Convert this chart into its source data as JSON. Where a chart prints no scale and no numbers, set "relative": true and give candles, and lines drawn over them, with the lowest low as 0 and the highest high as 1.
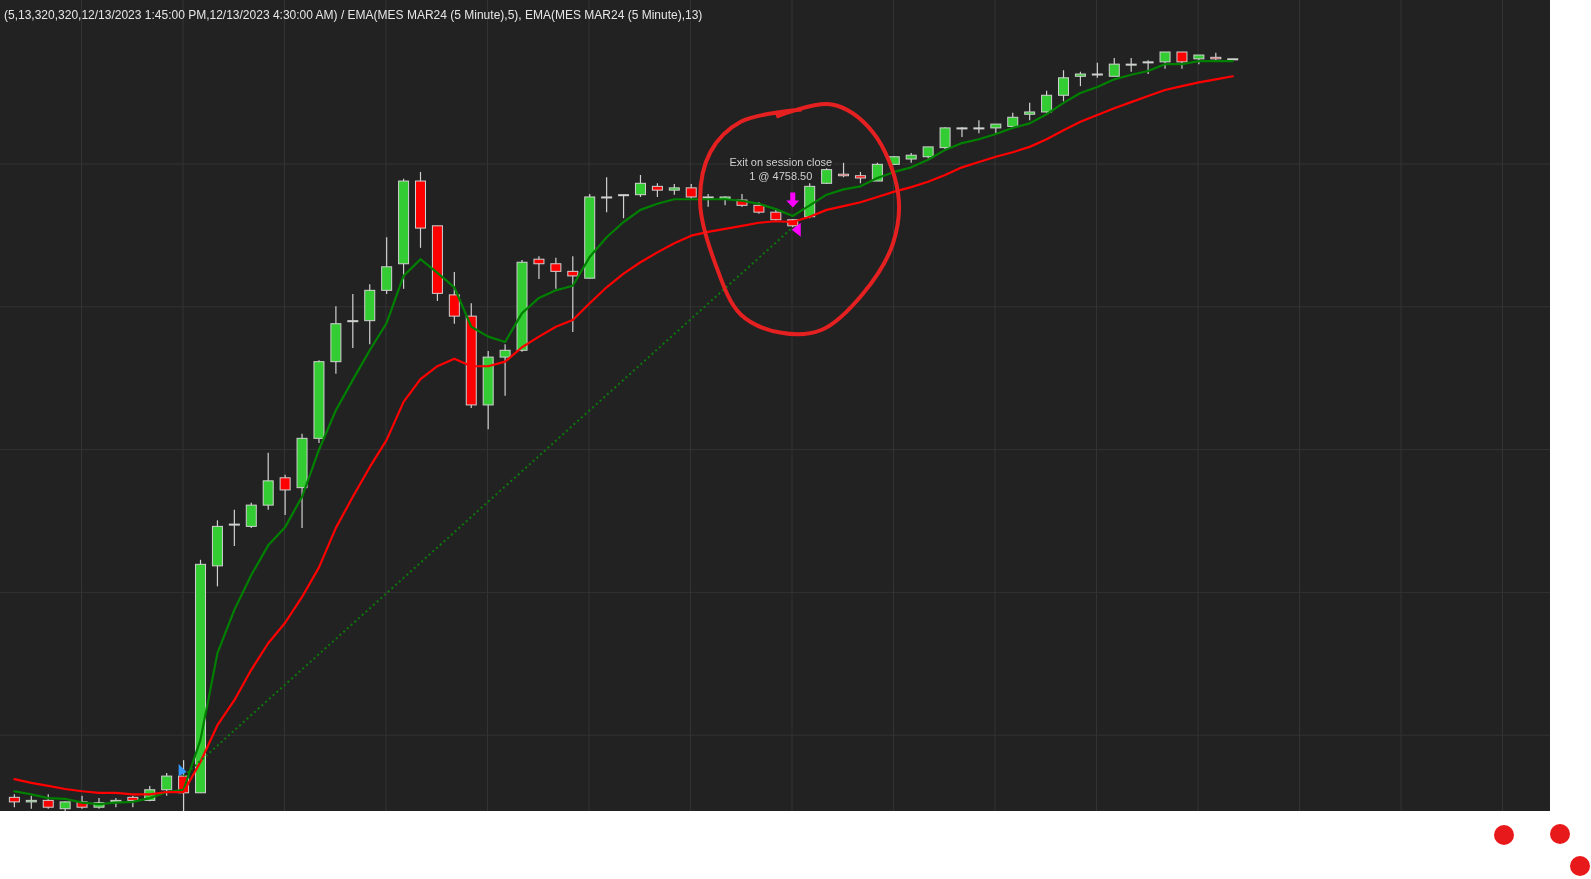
{
  "chart_data": {
    "type": "candlestick",
    "title": "(5,13,320,320,12/13/2023 1:45:00 PM,12/13/2023 4:30:00 AM) / EMA(MES MAR24 (5 Minute),5), EMA(MES MAR24 (5 Minute),13)",
    "relative": true,
    "grid": true,
    "categories": [
      null,
      null,
      null,
      null,
      null,
      null,
      null,
      null,
      null,
      null,
      null,
      null,
      null,
      null,
      null,
      null,
      null,
      null,
      null,
      null,
      null,
      null,
      null,
      null,
      null,
      null,
      null,
      null,
      null,
      null,
      null,
      null,
      null,
      null,
      null,
      null,
      null,
      null,
      null,
      null,
      null,
      null,
      null,
      null,
      null,
      null,
      null,
      null,
      null,
      null,
      null,
      null,
      null,
      null,
      null,
      null,
      null,
      null,
      null,
      null,
      null,
      null,
      null,
      null,
      null,
      null,
      null,
      null,
      null,
      null,
      null,
      null,
      null
    ],
    "ohlc": [
      [
        0.018,
        0.022,
        0.005,
        0.012
      ],
      [
        0.012,
        0.02,
        0.003,
        0.014
      ],
      [
        0.014,
        0.022,
        0.003,
        0.005
      ],
      [
        0.003,
        0.013,
        0,
        0.012
      ],
      [
        0.012,
        0.02,
        0.003,
        0.005
      ],
      [
        0.005,
        0.017,
        0.003,
        0.011
      ],
      [
        0.012,
        0.017,
        0.005,
        0.014
      ],
      [
        0.018,
        0.02,
        0.005,
        0.014
      ],
      [
        0.014,
        0.033,
        0.013,
        0.028
      ],
      [
        0.028,
        0.05,
        0.02,
        0.046
      ],
      [
        0.046,
        0.067,
        0,
        0.024
      ],
      [
        0.024,
        0.331,
        0.024,
        0.325
      ],
      [
        0.323,
        0.383,
        0.296,
        0.375
      ],
      [
        0.378,
        0.397,
        0.349,
        0.378
      ],
      [
        0.375,
        0.406,
        0.373,
        0.403
      ],
      [
        0.403,
        0.472,
        0.397,
        0.435
      ],
      [
        0.439,
        0.443,
        0.39,
        0.423
      ],
      [
        0.426,
        0.497,
        0.373,
        0.491
      ],
      [
        0.491,
        0.594,
        0.485,
        0.592
      ],
      [
        0.592,
        0.665,
        0.576,
        0.642
      ],
      [
        0.646,
        0.681,
        0.61,
        0.646
      ],
      [
        0.646,
        0.694,
        0.615,
        0.686
      ],
      [
        0.686,
        0.756,
        0.681,
        0.717
      ],
      [
        0.721,
        0.833,
        0.688,
        0.83
      ],
      [
        0.83,
        0.842,
        0.742,
        0.768
      ],
      [
        0.771,
        0.771,
        0.672,
        0.682
      ],
      [
        0.68,
        0.71,
        0.642,
        0.652
      ],
      [
        0.652,
        0.669,
        0.531,
        0.535
      ],
      [
        0.535,
        0.606,
        0.503,
        0.598
      ],
      [
        0.598,
        0.615,
        0.547,
        0.607
      ],
      [
        0.607,
        0.726,
        0.605,
        0.723
      ],
      [
        0.727,
        0.731,
        0.701,
        0.721
      ],
      [
        0.721,
        0.729,
        0.688,
        0.711
      ],
      [
        0.711,
        0.731,
        0.631,
        0.705
      ],
      [
        0.702,
        0.813,
        0.702,
        0.809
      ],
      [
        0.809,
        0.835,
        0.789,
        0.809
      ],
      [
        0.812,
        0.812,
        0.781,
        0.812
      ],
      [
        0.812,
        0.838,
        0.809,
        0.827
      ],
      [
        0.823,
        0.827,
        0.809,
        0.818
      ],
      [
        0.818,
        0.826,
        0.812,
        0.821
      ],
      [
        0.821,
        0.826,
        0.805,
        0.809
      ],
      [
        0.809,
        0.813,
        0.796,
        0.809
      ],
      [
        0.806,
        0.81,
        0.798,
        0.809
      ],
      [
        0.805,
        0.813,
        0.796,
        0.798
      ],
      [
        0.798,
        0.802,
        0.787,
        0.789
      ],
      [
        0.789,
        0.794,
        0.777,
        0.779
      ],
      [
        0.779,
        0.78,
        0.769,
        0.771
      ],
      [
        0.783,
        0.827,
        0.781,
        0.823
      ],
      [
        0.827,
        0.847,
        0.826,
        0.845
      ],
      [
        0.839,
        0.854,
        0.835,
        0.837
      ],
      [
        0.837,
        0.842,
        0.827,
        0.834
      ],
      [
        0.83,
        0.854,
        0.83,
        0.852
      ],
      [
        0.852,
        0.863,
        0.851,
        0.862
      ],
      [
        0.859,
        0.867,
        0.854,
        0.864
      ],
      [
        0.862,
        0.875,
        0.86,
        0.875
      ],
      [
        0.874,
        0.901,
        0.872,
        0.9
      ],
      [
        0.9,
        0.901,
        0.888,
        0.9
      ],
      [
        0.9,
        0.91,
        0.893,
        0.9
      ],
      [
        0.9,
        0.905,
        0.893,
        0.905
      ],
      [
        0.902,
        0.92,
        0.9,
        0.914
      ],
      [
        0.918,
        0.933,
        0.91,
        0.921
      ],
      [
        0.921,
        0.949,
        0.92,
        0.943
      ],
      [
        0.943,
        0.976,
        0.935,
        0.966
      ],
      [
        0.968,
        0.974,
        0.955,
        0.971
      ],
      [
        0.971,
        0.986,
        0.966,
        0.971
      ],
      [
        0.968,
        0.992,
        0.968,
        0.984
      ],
      [
        0.984,
        0.992,
        0.974,
        0.984
      ],
      [
        0.987,
        0.989,
        0.971,
        0.987
      ],
      [
        0.987,
        1,
        0.978,
        1
      ],
      [
        1,
        1,
        0.978,
        0.987
      ],
      [
        0.991,
        0.996,
        0.984,
        0.996
      ],
      [
        0.993,
        0.999,
        0.987,
        0.991
      ],
      [
        0.991,
        0.991,
        0.991,
        0.991
      ]
    ],
    "colors": [
      "#ff0000",
      "#33cc33",
      "#ff0000",
      "#33cc33",
      "#ff0000",
      "#33cc33",
      "#33cc33",
      "#ff0000",
      "#33cc33",
      "#33cc33",
      "#ff0000",
      "#33cc33",
      "#33cc33",
      "#33cc33",
      "#33cc33",
      "#33cc33",
      "#ff0000",
      "#33cc33",
      "#33cc33",
      "#33cc33",
      "#33cc33",
      "#33cc33",
      "#33cc33",
      "#33cc33",
      "#ff0000",
      "#ff0000",
      "#ff0000",
      "#ff0000",
      "#33cc33",
      "#33cc33",
      "#33cc33",
      "#ff0000",
      "#ff0000",
      "#ff0000",
      "#33cc33",
      "#33cc33",
      "#33cc33",
      "#33cc33",
      "#ff0000",
      "#33cc33",
      "#ff0000",
      "#33cc33",
      "#33cc33",
      "#ff0000",
      "#ff0000",
      "#ff0000",
      "#ff0000",
      "#33cc33",
      "#33cc33",
      "#ff0000",
      "#ff0000",
      "#33cc33",
      "#33cc33",
      "#33cc33",
      "#33cc33",
      "#33cc33",
      "#33cc33",
      "#33cc33",
      "#33cc33",
      "#33cc33",
      "#33cc33",
      "#33cc33",
      "#33cc33",
      "#33cc33",
      "#33cc33",
      "#33cc33",
      "#33cc33",
      "#33cc33",
      "#33cc33",
      "#ff0000",
      "#33cc33",
      "#ff0000",
      "#33cc33"
    ],
    "series": [
      {
        "type": "line",
        "color": "#008000",
        "line_style": "solid",
        "values": [
          0.026,
          0.022,
          0.017,
          0.016,
          0.011,
          0.009,
          0.011,
          0.012,
          0.017,
          0.025,
          0.028,
          0.094,
          0.208,
          0.265,
          0.311,
          0.35,
          0.374,
          0.414,
          0.476,
          0.528,
          0.568,
          0.607,
          0.643,
          0.705,
          0.727,
          0.709,
          0.69,
          0.638,
          0.625,
          0.618,
          0.656,
          0.676,
          0.686,
          0.692,
          0.73,
          0.756,
          0.776,
          0.792,
          0.8,
          0.806,
          0.806,
          0.806,
          0.806,
          0.804,
          0.8,
          0.793,
          0.784,
          0.798,
          0.812,
          0.819,
          0.823,
          0.834,
          0.842,
          0.848,
          0.858,
          0.871,
          0.88,
          0.885,
          0.892,
          0.9,
          0.906,
          0.918,
          0.933,
          0.946,
          0.954,
          0.964,
          0.97,
          0.975,
          0.984,
          0.984,
          0.988,
          0.988,
          0.988
        ]
      },
      {
        "type": "line",
        "color": "#ff0000",
        "line_style": "solid",
        "values": [
          0.042,
          0.037,
          0.033,
          0.029,
          0.026,
          0.024,
          0.024,
          0.022,
          0.022,
          0.025,
          0.025,
          0.065,
          0.113,
          0.146,
          0.186,
          0.221,
          0.248,
          0.282,
          0.321,
          0.373,
          0.414,
          0.453,
          0.489,
          0.539,
          0.569,
          0.586,
          0.596,
          0.586,
          0.586,
          0.592,
          0.611,
          0.625,
          0.638,
          0.647,
          0.669,
          0.69,
          0.708,
          0.723,
          0.736,
          0.748,
          0.758,
          0.763,
          0.767,
          0.771,
          0.775,
          0.777,
          0.776,
          0.783,
          0.792,
          0.797,
          0.802,
          0.809,
          0.816,
          0.822,
          0.829,
          0.838,
          0.848,
          0.855,
          0.862,
          0.868,
          0.875,
          0.885,
          0.897,
          0.908,
          0.917,
          0.926,
          0.934,
          0.942,
          0.95,
          0.955,
          0.96,
          0.964,
          0.968
        ]
      },
      {
        "type": "line",
        "color": "#0b7a0b",
        "line_style": "dotted",
        "values": [
          null,
          null,
          null,
          null,
          null,
          null,
          null,
          null,
          null,
          null,
          0.046,
          null,
          null,
          null,
          null,
          null,
          null,
          null,
          null,
          null,
          null,
          null,
          null,
          null,
          null,
          null,
          null,
          null,
          null,
          null,
          null,
          null,
          null,
          null,
          null,
          null,
          null,
          null,
          null,
          null,
          null,
          null,
          null,
          null,
          null,
          null,
          0.769,
          null,
          null,
          null,
          null,
          null,
          null,
          null,
          null,
          null,
          null,
          null,
          null,
          null,
          null,
          null,
          null,
          null,
          null,
          null,
          null,
          null,
          null,
          null,
          null,
          null,
          null
        ]
      }
    ],
    "annotations": [
      "Exit on session close",
      "1 @ 4758.50"
    ]
  }
}
